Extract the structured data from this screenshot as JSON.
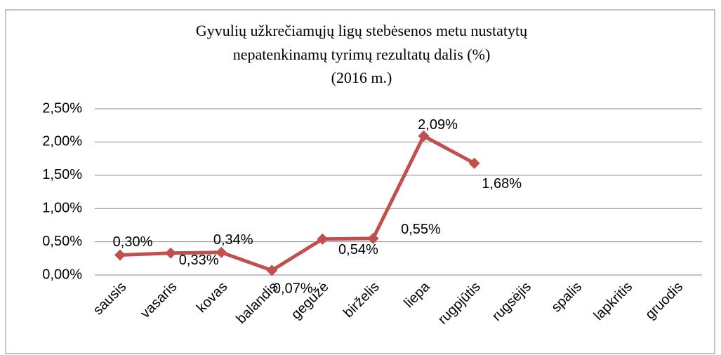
{
  "chart_data": {
    "type": "line",
    "title": [
      "Gyvulių užkrečiamųjų  ligų stebėsenos metu nustatytų",
      "nepatenkinamų tyrimų rezultatų dalis (%)",
      "(2016  m.)"
    ],
    "categories": [
      "sausis",
      "vasaris",
      "kovas",
      "balandis",
      "gegužė",
      "birželis",
      "liepa",
      "rugpjūtis",
      "rugsėjis",
      "spalis",
      "lapkritis",
      "gruodis"
    ],
    "values": [
      0.3,
      0.33,
      0.34,
      0.07,
      0.54,
      0.55,
      2.09,
      1.68,
      null,
      null,
      null,
      null
    ],
    "value_labels": [
      "0,30%",
      "0,33%",
      "0,34%",
      "0,07%",
      "0,54%",
      "0,55%",
      "2,09%",
      "1,68%",
      null,
      null,
      null,
      null
    ],
    "color": "#c0504d",
    "ylim": [
      0,
      2.5
    ],
    "yticks": [
      {
        "value": 0,
        "label": "0,00%"
      },
      {
        "value": 0.5,
        "label": "0,50%"
      },
      {
        "value": 1,
        "label": "1,00%"
      },
      {
        "value": 1.5,
        "label": "1,50%"
      },
      {
        "value": 2,
        "label": "2,00%"
      },
      {
        "value": 2.5,
        "label": "2,50%"
      }
    ],
    "grid": true
  }
}
